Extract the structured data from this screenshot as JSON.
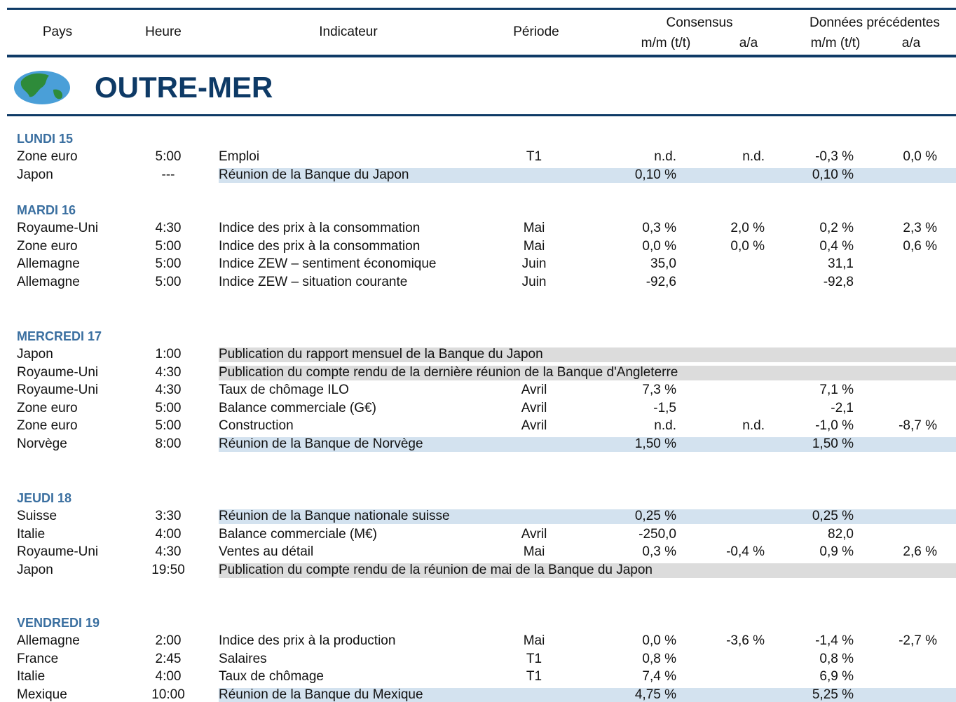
{
  "header": {
    "columns": {
      "country": "Pays",
      "time": "Heure",
      "indicator": "Indicateur",
      "period": "Période"
    },
    "consensus": {
      "title": "Consensus",
      "mm": "m/m (t/t)",
      "yy": "a/a"
    },
    "previous": {
      "title": "Données précédentes",
      "mm": "m/m (t/t)",
      "yy": "a/a"
    }
  },
  "banner": {
    "title": "OUTRE-MER"
  },
  "sections": [
    {
      "day": "LUNDI 15",
      "rows": [
        {
          "country": "Zone euro",
          "time": "5:00",
          "indicator": "Emploi",
          "period": "T1",
          "consensus_mm": "n.d.",
          "consensus_yy": "n.d.",
          "previous_mm": "-0,3 %",
          "previous_yy": "0,0 %"
        },
        {
          "country": "Japon",
          "time": "---",
          "indicator": "Réunion de la Banque du Japon",
          "consensus_mm": "0,10 %",
          "previous_mm": "0,10 %",
          "highlight": "#d3e2ef"
        }
      ]
    },
    {
      "day": "MARDI 16",
      "rows": [
        {
          "country": "Royaume-Uni",
          "time": "4:30",
          "indicator": "Indice des prix à la consommation",
          "period": "Mai",
          "consensus_mm": "0,3 %",
          "consensus_yy": "2,0 %",
          "previous_mm": "0,2 %",
          "previous_yy": "2,3 %"
        },
        {
          "country": "Zone euro",
          "time": "5:00",
          "indicator": "Indice des prix à la consommation",
          "period": "Mai",
          "consensus_mm": "0,0 %",
          "consensus_yy": "0,0 %",
          "previous_mm": "0,4 %",
          "previous_yy": "0,6 %"
        },
        {
          "country": "Allemagne",
          "time": "5:00",
          "indicator": "Indice ZEW – sentiment économique",
          "period": "Juin",
          "consensus_mm": "35,0",
          "previous_mm": "31,1"
        },
        {
          "country": "Allemagne",
          "time": "5:00",
          "indicator": "Indice ZEW – situation courante",
          "period": "Juin",
          "consensus_mm": "-92,6",
          "previous_mm": "-92,8"
        }
      ]
    },
    {
      "day": "MERCREDI 17",
      "rows": [
        {
          "country": "Japon",
          "time": "1:00",
          "indicator": "Publication du rapport mensuel de la Banque du Japon",
          "highlight": "#dcdcdc"
        },
        {
          "country": "Royaume-Uni",
          "time": "4:30",
          "indicator": "Publication du compte rendu de la dernière réunion de la Banque d'Angleterre",
          "highlight": "#dcdcdc"
        },
        {
          "country": "Royaume-Uni",
          "time": "4:30",
          "indicator": "Taux de chômage ILO",
          "period": "Avril",
          "consensus_mm": "7,3 %",
          "previous_mm": "7,1 %"
        },
        {
          "country": "Zone euro",
          "time": "5:00",
          "indicator": "Balance commerciale (G€)",
          "period": "Avril",
          "consensus_mm": "-1,5",
          "previous_mm": "-2,1"
        },
        {
          "country": "Zone euro",
          "time": "5:00",
          "indicator": "Construction",
          "period": "Avril",
          "consensus_mm": "n.d.",
          "consensus_yy": "n.d.",
          "previous_mm": "-1,0 %",
          "previous_yy": "-8,7 %"
        },
        {
          "country": "Norvège",
          "time": "8:00",
          "indicator": "Réunion de la Banque de Norvège",
          "consensus_mm": "1,50 %",
          "previous_mm": "1,50 %",
          "highlight": "#d3e2ef"
        }
      ]
    },
    {
      "day": "JEUDI 18",
      "rows": [
        {
          "country": "Suisse",
          "time": "3:30",
          "indicator": "Réunion de la Banque nationale suisse",
          "consensus_mm": "0,25 %",
          "previous_mm": "0,25 %",
          "highlight": "#d3e2ef"
        },
        {
          "country": "Italie",
          "time": "4:00",
          "indicator": "Balance commerciale (M€)",
          "period": "Avril",
          "consensus_mm": "-250,0",
          "previous_mm": "82,0"
        },
        {
          "country": "Royaume-Uni",
          "time": "4:30",
          "indicator": "Ventes au détail",
          "period": "Mai",
          "consensus_mm": "0,3 %",
          "consensus_yy": "-0,4 %",
          "previous_mm": "0,9 %",
          "previous_yy": "2,6 %"
        },
        {
          "country": "Japon",
          "time": "19:50",
          "indicator": "Publication du compte rendu de la réunion de mai de la Banque du Japon",
          "highlight": "#dcdcdc"
        }
      ]
    },
    {
      "day": "VENDREDI 19",
      "rows": [
        {
          "country": "Allemagne",
          "time": "2:00",
          "indicator": "Indice des prix à la production",
          "period": "Mai",
          "consensus_mm": "0,0 %",
          "consensus_yy": "-3,6 %",
          "previous_mm": "-1,4 %",
          "previous_yy": "-2,7 %"
        },
        {
          "country": "France",
          "time": "2:45",
          "indicator": "Salaires",
          "period": "T1",
          "consensus_mm": "0,8 %",
          "previous_mm": "0,8 %"
        },
        {
          "country": "Italie",
          "time": "4:00",
          "indicator": "Taux de chômage",
          "period": "T1",
          "consensus_mm": "7,4 %",
          "previous_mm": "6,9 %"
        },
        {
          "country": "Mexique",
          "time": "10:00",
          "indicator": "Réunion de la Banque du Mexique",
          "consensus_mm": "4,75 %",
          "previous_mm": "5,25 %",
          "highlight": "#d3e2ef"
        }
      ]
    }
  ]
}
